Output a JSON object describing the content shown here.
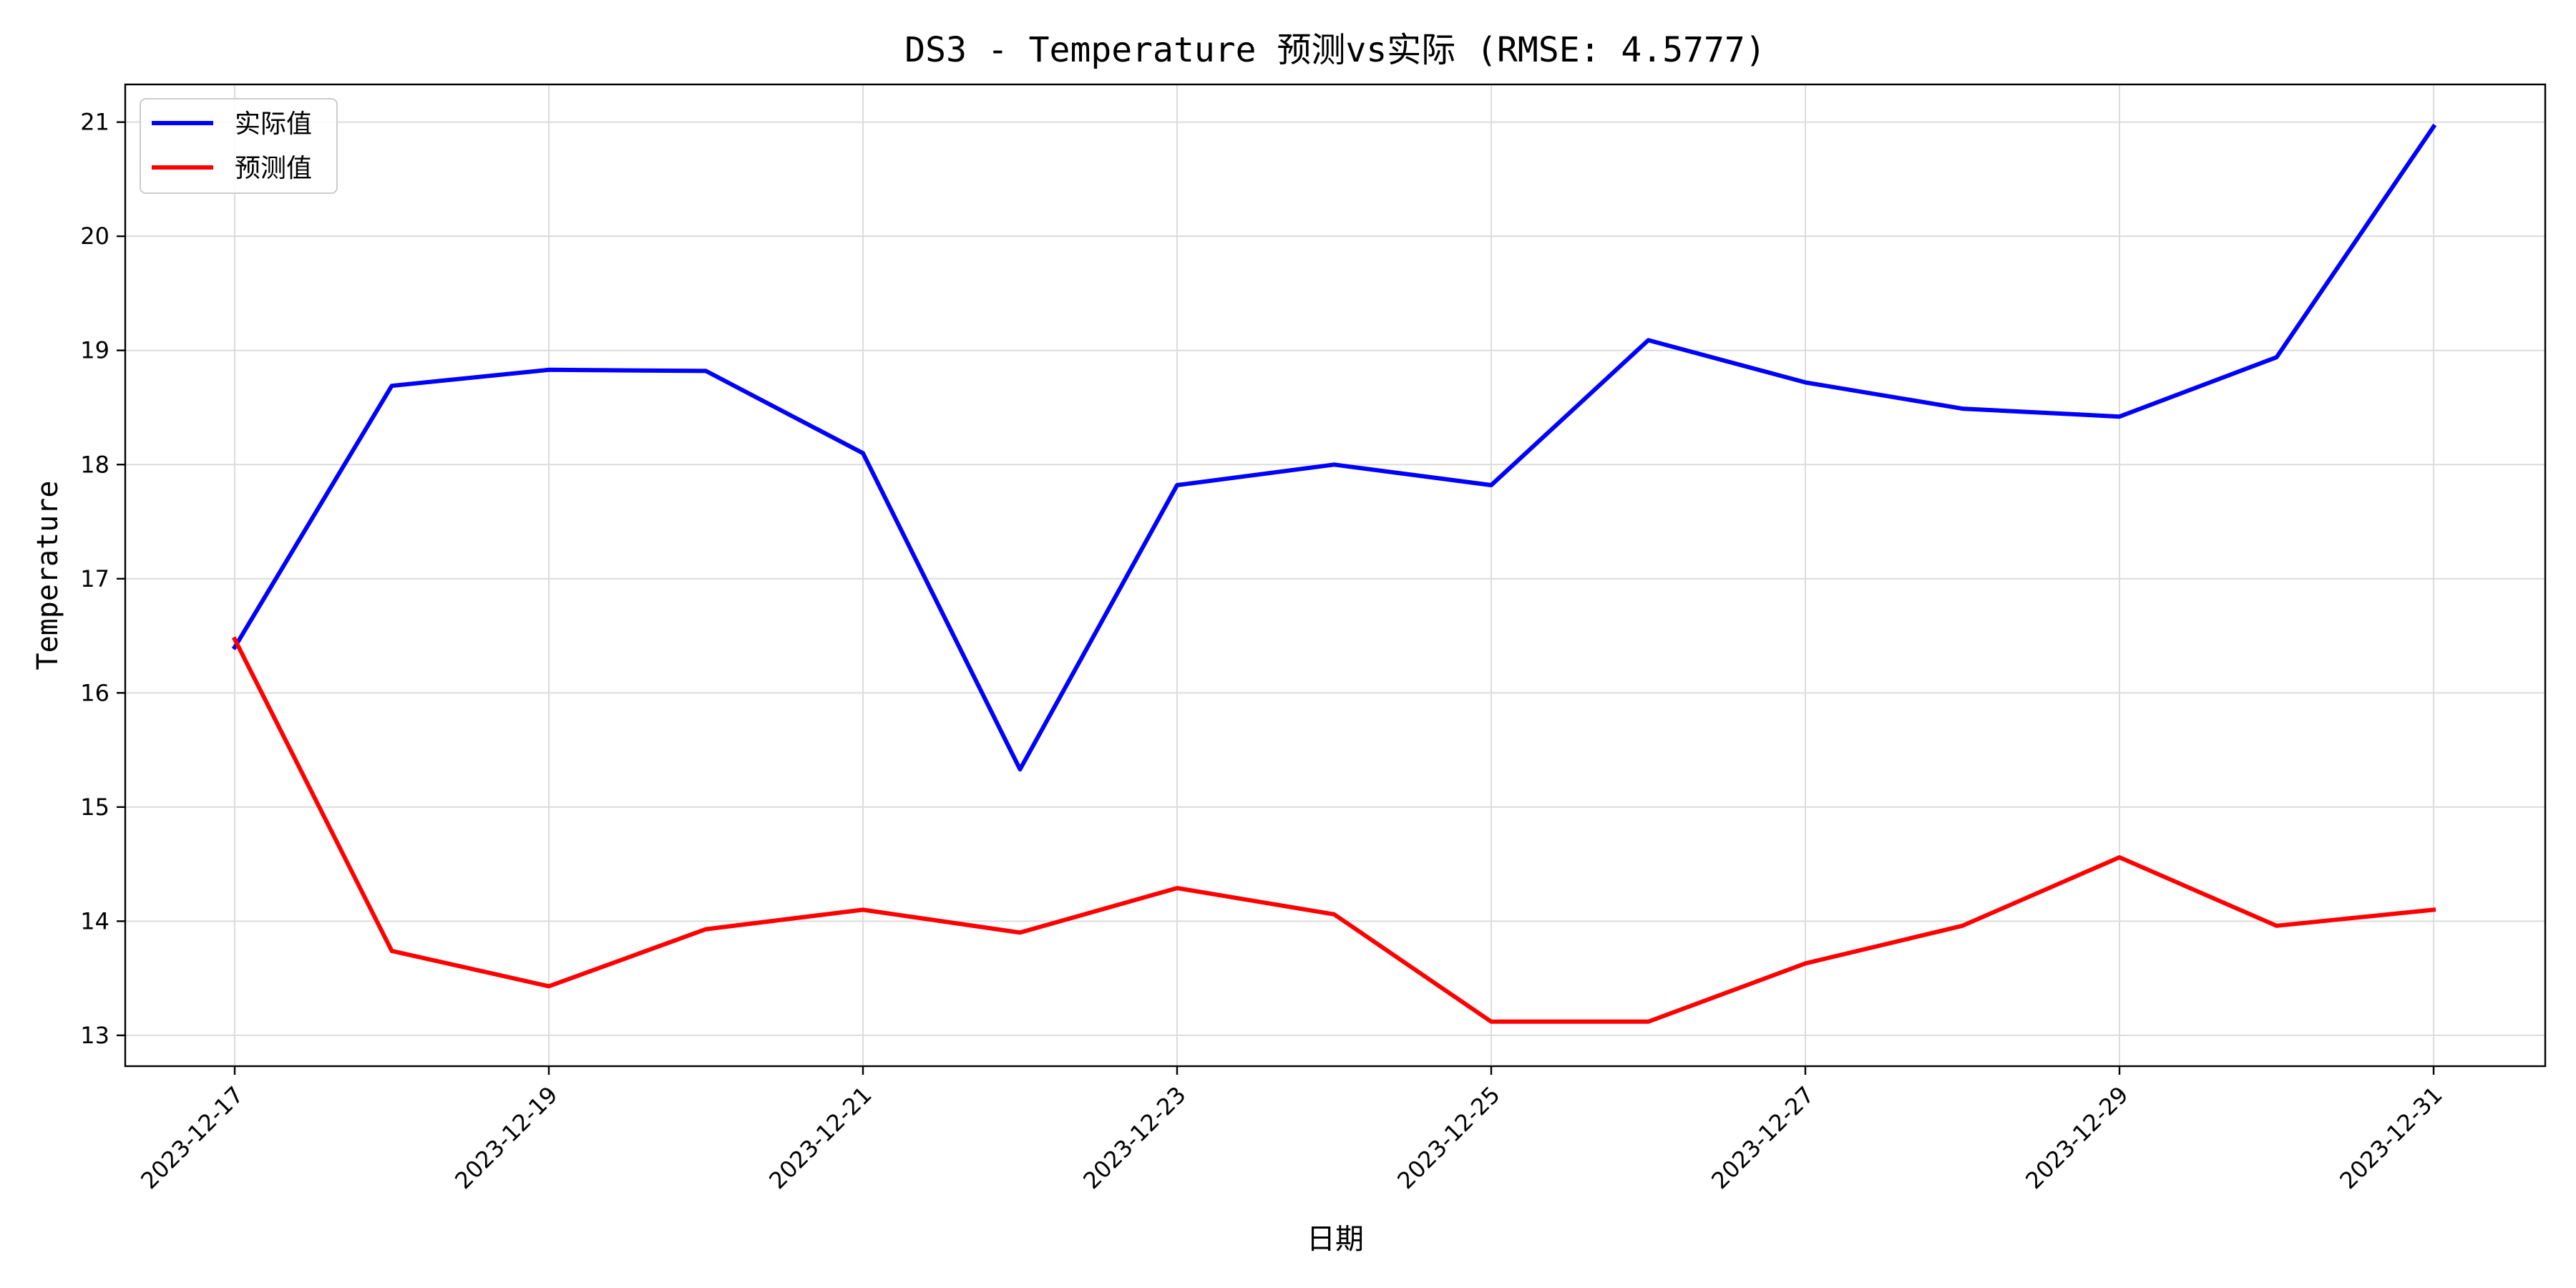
{
  "chart_data": {
    "type": "line",
    "title": "DS3 - Temperature 预测vs实际 (RMSE: 4.5777)",
    "xlabel": "日期",
    "ylabel": "Temperature",
    "x": [
      "2023-12-17",
      "2023-12-18",
      "2023-12-19",
      "2023-12-20",
      "2023-12-21",
      "2023-12-22",
      "2023-12-23",
      "2023-12-24",
      "2023-12-25",
      "2023-12-26",
      "2023-12-27",
      "2023-12-28",
      "2023-12-29",
      "2023-12-30",
      "2023-12-31"
    ],
    "x_ticks": [
      "2023-12-17",
      "2023-12-19",
      "2023-12-21",
      "2023-12-23",
      "2023-12-25",
      "2023-12-27",
      "2023-12-29",
      "2023-12-31"
    ],
    "y_ticks": [
      13,
      14,
      15,
      16,
      17,
      18,
      19,
      20,
      21
    ],
    "ylim": [
      12.73,
      21.33
    ],
    "grid": true,
    "legend_position": "top-left",
    "series": [
      {
        "name": "实际值",
        "color": "#0000ff",
        "values": [
          16.4,
          18.69,
          18.83,
          18.82,
          18.1,
          15.33,
          17.82,
          18.0,
          17.82,
          19.09,
          18.72,
          18.49,
          18.42,
          18.94,
          20.96
        ]
      },
      {
        "name": "预测值",
        "color": "#ff0000",
        "values": [
          16.47,
          13.74,
          13.43,
          13.93,
          14.1,
          13.9,
          14.29,
          14.06,
          13.12,
          13.12,
          13.63,
          13.96,
          14.56,
          13.96,
          14.1
        ]
      }
    ]
  }
}
